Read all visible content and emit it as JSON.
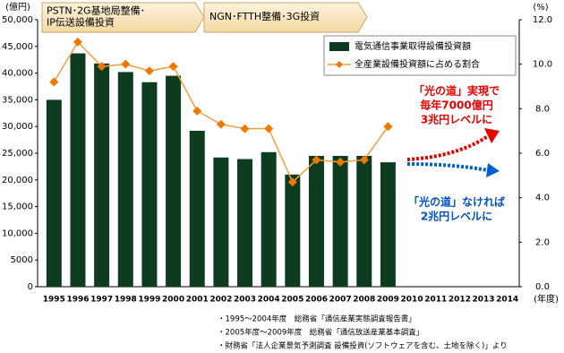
{
  "chart_data": {
    "type": "bar",
    "categories": [
      "1995",
      "1996",
      "1997",
      "1998",
      "1999",
      "2000",
      "2001",
      "2002",
      "2003",
      "2004",
      "2005",
      "2006",
      "2007",
      "2008",
      "2009",
      "2010",
      "2011",
      "2012",
      "2013",
      "2014"
    ],
    "series": [
      {
        "name": "電気通信事業取得設備投資額",
        "type": "bar",
        "color": "#0d3d1e",
        "values": [
          35000,
          43700,
          41800,
          40200,
          38300,
          39500,
          29200,
          24200,
          23900,
          25200,
          21000,
          24500,
          24500,
          24500,
          23300,
          null,
          null,
          null,
          null,
          null
        ]
      },
      {
        "name": "全産業設備投資額に占める割合",
        "type": "line",
        "axis": "y2",
        "color": "#f0a040",
        "marker_color": "#f07800",
        "values": [
          9.2,
          11.0,
          9.9,
          10.0,
          9.7,
          9.9,
          7.9,
          7.3,
          7.1,
          7.1,
          4.7,
          5.7,
          5.6,
          5.7,
          7.2,
          null,
          null,
          null,
          null,
          null
        ]
      }
    ],
    "ylim": [
      0,
      50000
    ],
    "yticks": [
      0,
      {
        "value": 5000,
        "label": "5000"
      },
      {
        "value": 10000,
        "label": "10,000"
      },
      {
        "value": 15000,
        "label": "15,000"
      },
      {
        "value": 20000,
        "label": "20,000"
      },
      {
        "value": 25000,
        "label": "25,000"
      },
      {
        "value": 30000,
        "label": "30,000"
      },
      {
        "value": 35000,
        "label": "35,000"
      },
      {
        "value": 40000,
        "label": "40,000"
      },
      {
        "value": 45000,
        "label": "45,000"
      },
      {
        "value": 50000,
        "label": "50,000"
      }
    ],
    "y2lim": [
      0,
      12
    ],
    "y2ticks": [
      {
        "value": 0,
        "label": "0.0"
      },
      {
        "value": 2,
        "label": "2.0"
      },
      {
        "value": 4,
        "label": "4.0"
      },
      {
        "value": 6,
        "label": "6.0"
      },
      {
        "value": 8,
        "label": "8.0"
      },
      {
        "value": 10,
        "label": "10.0"
      },
      {
        "value": 12,
        "label": "12.0"
      }
    ],
    "y_unit": "(億円)",
    "y2_unit": "(%)",
    "x_unit": "(年度)",
    "grid": false,
    "banners": [
      {
        "lines": [
          "PSTN･2G基地局整備･",
          "IP伝送設備投資"
        ]
      },
      {
        "lines": [
          "NGN･FTTH整備･3G投資"
        ]
      }
    ],
    "annotations": [
      {
        "color": "#e60000",
        "lines": [
          "「光の道」実現で",
          "毎年7000億円",
          "3兆円レベルに"
        ]
      },
      {
        "color": "#0050c8",
        "lines": [
          "「光の道」なければ",
          "2兆円レベルに"
        ]
      }
    ],
    "notes": [
      "・1995～2004年度　総務省「通信産業実態調査報告書」",
      "・2005年度～2009年度　総務省「通信放送産業基本調査」",
      "・財務省「法人企業景気予測調査 設備投資(ソフトウェアを含む、土地を除く)」より"
    ]
  }
}
